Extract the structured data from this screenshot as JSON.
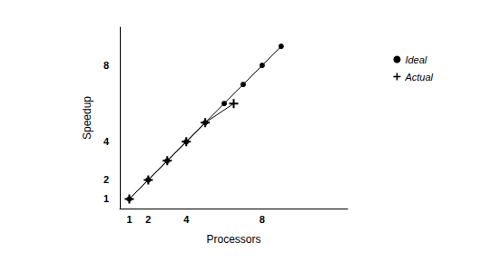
{
  "chart_data": {
    "type": "line",
    "x_label": "Processors",
    "y_label": "Speedup",
    "xlim": [
      0.5,
      12.5
    ],
    "ylim": [
      0.5,
      10
    ],
    "xticks": [
      1,
      2,
      4,
      8
    ],
    "yticks": [
      1,
      2,
      4,
      8
    ],
    "grid": false,
    "legend": "upper right",
    "series": [
      {
        "name": "Ideal",
        "marker": "circle",
        "line_style": "solid",
        "color": "#000000",
        "x": [
          1,
          2,
          3,
          4,
          5,
          6,
          7,
          8,
          9
        ],
        "values": [
          1,
          2,
          3,
          4,
          5,
          6,
          7,
          8,
          9
        ]
      },
      {
        "name": "Actual",
        "marker": "plus",
        "line_style": "solid",
        "color": "#000000",
        "x": [
          1,
          2,
          3,
          4,
          5,
          6.5
        ],
        "values": [
          1,
          2,
          3,
          4,
          5,
          6
        ]
      }
    ]
  }
}
